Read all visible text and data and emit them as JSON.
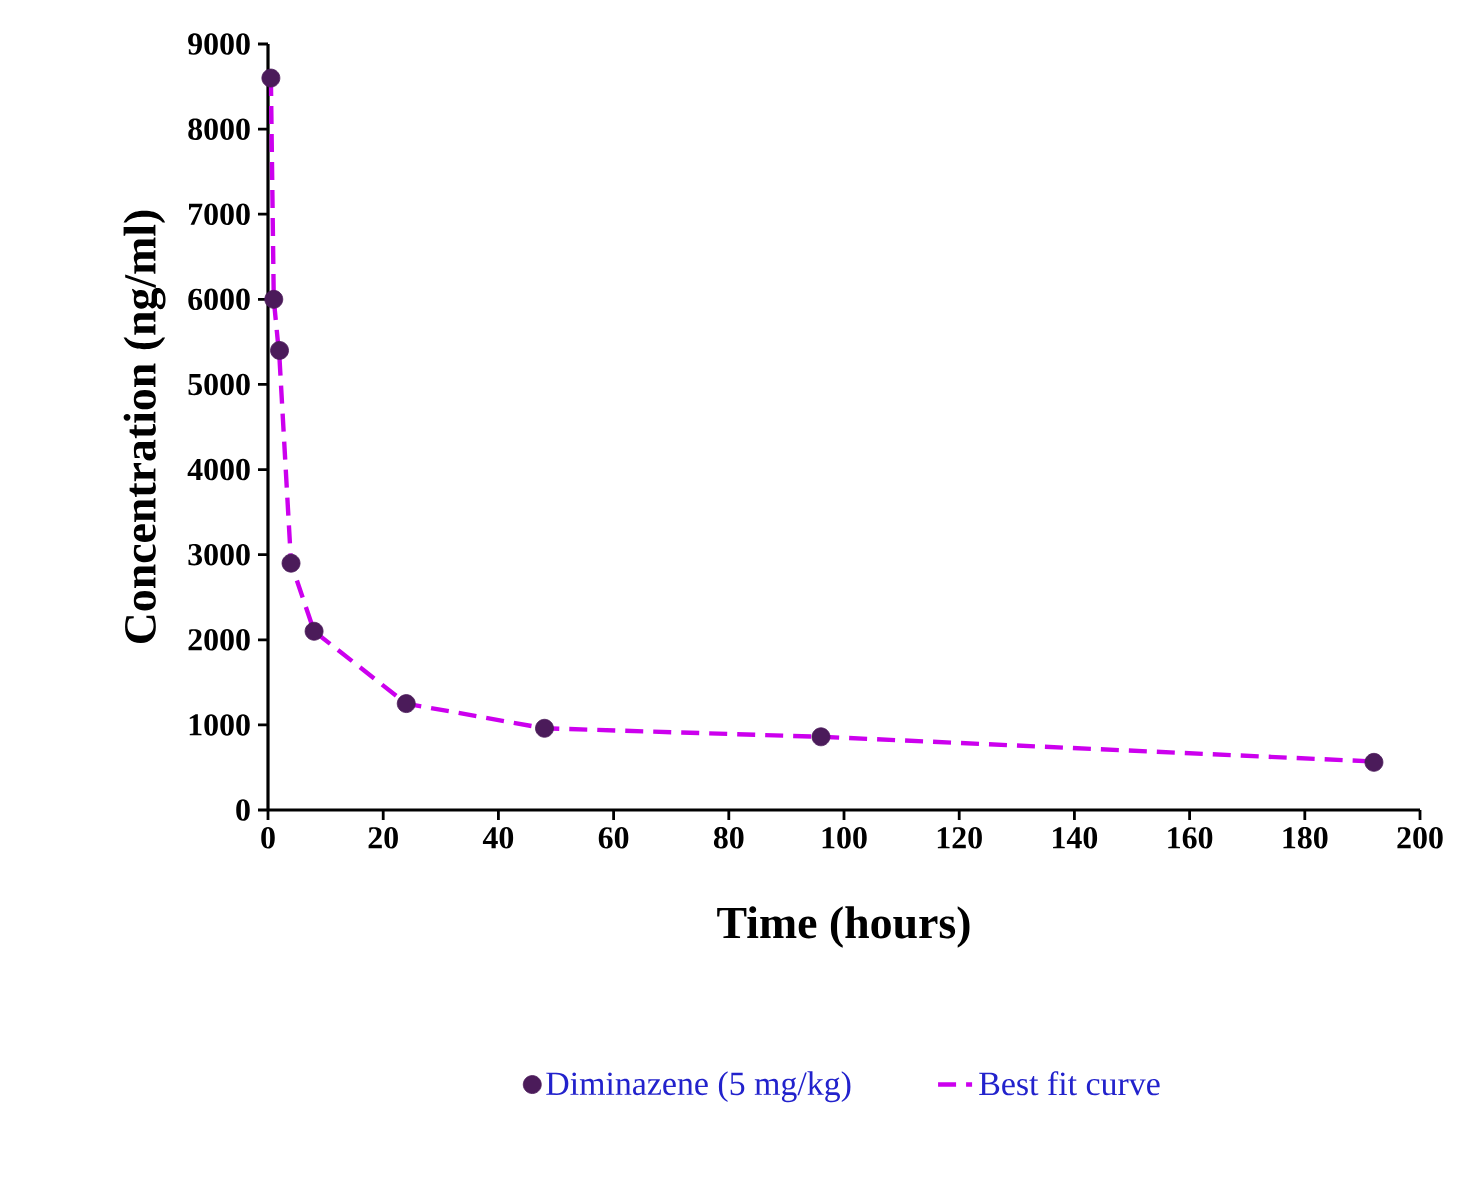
{
  "chart_data": {
    "type": "scatter",
    "xlabel": "Time (hours)",
    "ylabel": "Concentration (ng/ml)",
    "series": [
      {
        "name": "Diminazene (5 mg/kg)",
        "color": "#4b1b5a",
        "marker": "circle",
        "x": [
          0.5,
          1,
          2,
          4,
          8,
          24,
          48,
          96,
          192
        ],
        "values": [
          8600,
          6000,
          5400,
          2900,
          2100,
          1250,
          960,
          860,
          560
        ]
      },
      {
        "name": "Best fit curve",
        "type": "line",
        "color": "#cc00ee",
        "marker": "none",
        "line_style": "dashed",
        "x": [
          0.5,
          1,
          2,
          4,
          8,
          24,
          48,
          96,
          192
        ],
        "values": [
          8600,
          6000,
          5300,
          2900,
          2100,
          1250,
          960,
          860,
          570
        ]
      }
    ],
    "xlim": [
      0,
      200
    ],
    "xticks": [
      0,
      20,
      40,
      60,
      80,
      100,
      120,
      140,
      160,
      180,
      200
    ],
    "ylim": [
      0,
      9000
    ],
    "yticks": [
      0,
      1000,
      2000,
      3000,
      4000,
      5000,
      6000,
      7000,
      8000,
      9000
    ],
    "grid": false,
    "legend": "bottom"
  }
}
